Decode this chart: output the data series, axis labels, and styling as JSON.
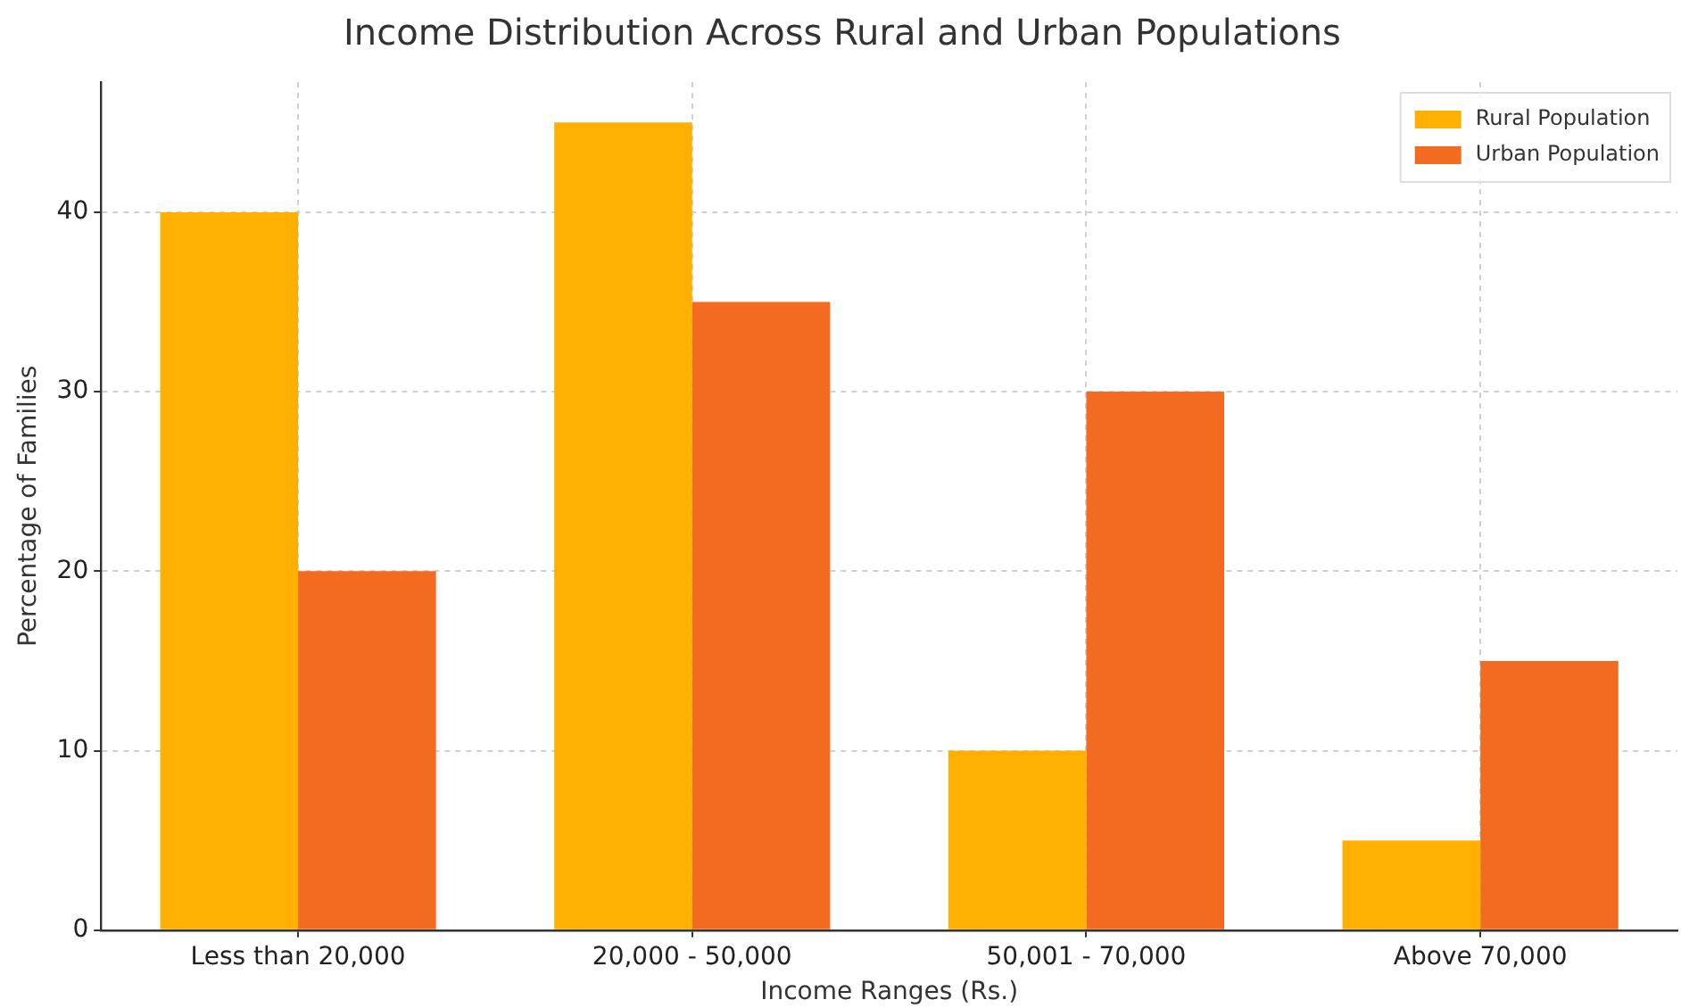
{
  "chart_data": {
    "type": "bar",
    "title": "Income Distribution Across Rural and Urban Populations",
    "xlabel": "Income Ranges (Rs.)",
    "ylabel": "Percentage of Families",
    "categories": [
      "Less than 20,000",
      "20,000 - 50,000",
      "50,001 - 70,000",
      "Above 70,000"
    ],
    "series": [
      {
        "name": "Rural Population",
        "color": "#ffb000",
        "values": [
          40,
          45,
          10,
          5
        ]
      },
      {
        "name": "Urban Population",
        "color": "#f26b21",
        "values": [
          20,
          35,
          30,
          15
        ]
      }
    ],
    "ylim": [
      0,
      47.25
    ],
    "yticks": [
      0,
      10,
      20,
      30,
      40
    ],
    "grid": true,
    "legend": "top right"
  }
}
